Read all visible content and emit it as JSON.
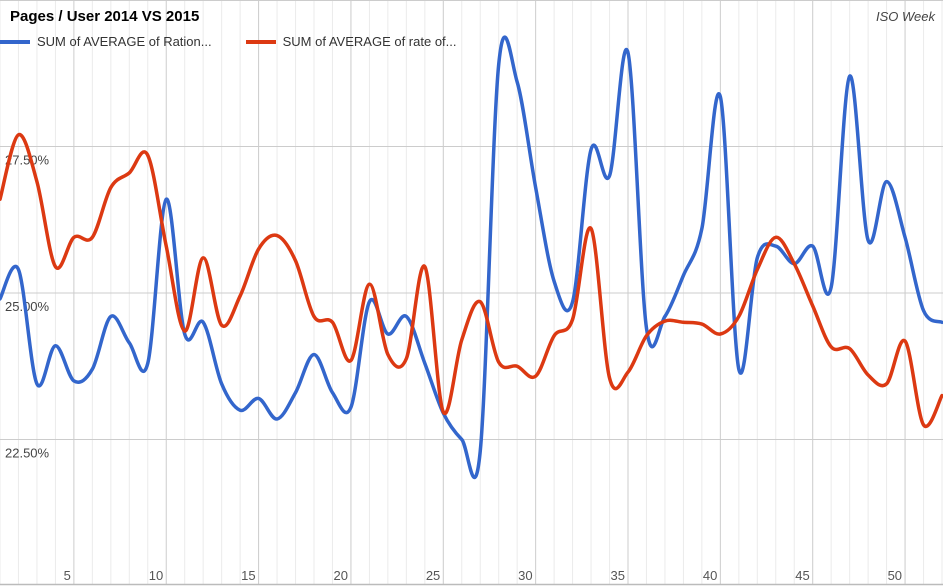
{
  "chart_data": {
    "type": "line",
    "title": "Pages / User 2014 VS 2015",
    "xlabel": "ISO Week",
    "ylabel": "",
    "xlim": [
      1,
      52
    ],
    "ylim": [
      20,
      30
    ],
    "grid": true,
    "legend_position": "top-left",
    "x_ticks": [
      5,
      10,
      15,
      20,
      25,
      30,
      35,
      40,
      45,
      50
    ],
    "x_tick_labels": [
      "5",
      "10",
      "15",
      "20",
      "25",
      "30",
      "35",
      "40",
      "45",
      "50"
    ],
    "y_ticks": [
      22.5,
      25,
      27.5
    ],
    "y_tick_labels": [
      "22.50%",
      "25.00%",
      "27.50%"
    ],
    "x": [
      1,
      2,
      3,
      4,
      5,
      6,
      7,
      8,
      9,
      10,
      11,
      12,
      13,
      14,
      15,
      16,
      17,
      18,
      19,
      20,
      21,
      22,
      23,
      24,
      25,
      26,
      27,
      28,
      29,
      30,
      31,
      32,
      33,
      34,
      35,
      36,
      37,
      38,
      39,
      40,
      41,
      42,
      43,
      44,
      45,
      46,
      47,
      48,
      49,
      50,
      51,
      52
    ],
    "series": [
      {
        "name": "SUM of AVERAGE of Ration...",
        "color": "#3366cc",
        "values": [
          24.9,
          25.4,
          23.45,
          24.1,
          23.5,
          23.7,
          24.6,
          24.15,
          23.8,
          26.6,
          24.3,
          24.5,
          23.45,
          23.0,
          23.2,
          22.85,
          23.3,
          23.95,
          23.3,
          23.05,
          24.85,
          24.3,
          24.6,
          23.8,
          22.95,
          22.5,
          22.3,
          28.9,
          28.6,
          26.8,
          25.2,
          24.85,
          27.45,
          27.0,
          29.1,
          24.4,
          24.6,
          25.3,
          26.1,
          28.35,
          23.7,
          25.6,
          25.8,
          25.5,
          25.8,
          25.1,
          28.7,
          25.9,
          26.9,
          25.95,
          24.7,
          24.5
        ]
      },
      {
        "name": "SUM of AVERAGE of rate of...",
        "color": "#dc3912",
        "values": [
          26.6,
          27.7,
          26.9,
          25.45,
          25.95,
          25.95,
          26.8,
          27.05,
          27.35,
          25.8,
          24.35,
          25.6,
          24.45,
          24.95,
          25.75,
          25.98,
          25.55,
          24.6,
          24.5,
          23.85,
          25.15,
          23.95,
          23.88,
          25.45,
          22.97,
          24.2,
          24.85,
          23.82,
          23.75,
          23.58,
          24.27,
          24.55,
          26.1,
          23.55,
          23.65,
          24.27,
          24.52,
          24.5,
          24.47,
          24.3,
          24.6,
          25.4,
          25.95,
          25.5,
          24.78,
          24.08,
          24.05,
          23.6,
          23.45,
          24.18,
          22.75,
          23.25
        ]
      }
    ]
  }
}
